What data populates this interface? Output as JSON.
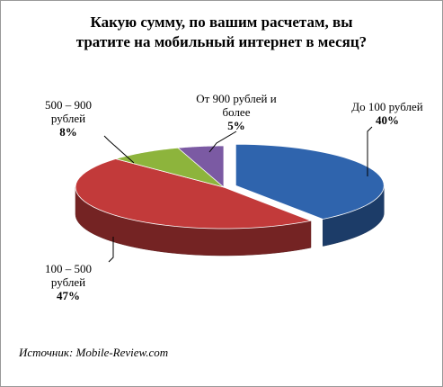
{
  "chart_data": {
    "type": "pie3d",
    "title": [
      "Какую сумму, по вашим расчетам, вы",
      "тратите на мобильный интернет в месяц?"
    ],
    "categories": [
      "До 100 рублей",
      "100 – 500 рублей",
      "500 – 900 рублей",
      "От 900 рублей и более"
    ],
    "values": [
      40,
      47,
      8,
      5
    ],
    "value_labels": [
      "40%",
      "47%",
      "8%",
      "5%"
    ],
    "colors": [
      "#2f64ad",
      "#c23a3a",
      "#8db43c",
      "#7b5aa3"
    ],
    "source": "Источник: Mobile-Review.com"
  }
}
